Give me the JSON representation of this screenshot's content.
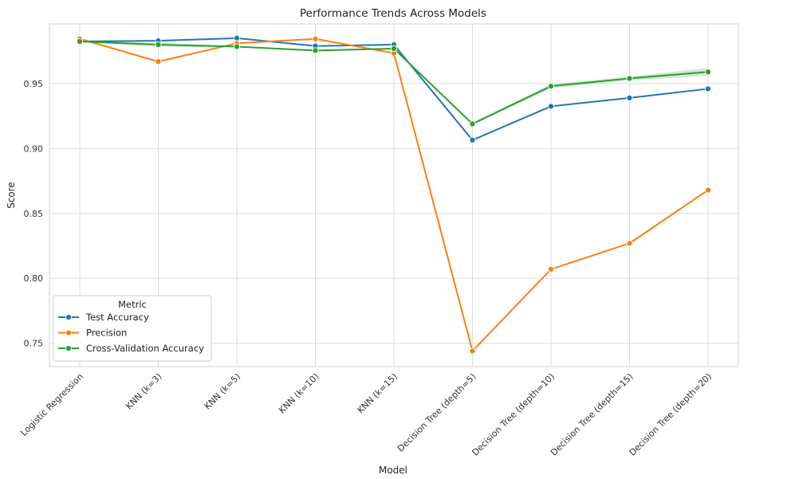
{
  "chart_data": {
    "type": "line",
    "title": "Performance Trends Across Models",
    "xlabel": "Model",
    "ylabel": "Score",
    "categories": [
      "Logistic Regression",
      "KNN (k=3)",
      "KNN (k=5)",
      "KNN (k=10)",
      "KNN (k=15)",
      "Decision Tree (depth=5)",
      "Decision Tree (depth=10)",
      "Decision Tree (depth=15)",
      "Decision Tree (depth=20)"
    ],
    "ylim": [
      0.732,
      0.996
    ],
    "yticks": [
      0.75,
      0.8,
      0.85,
      0.9,
      0.95
    ],
    "ytick_labels": [
      "0.75",
      "0.80",
      "0.85",
      "0.90",
      "0.95"
    ],
    "grid": true,
    "legend": {
      "title": "Metric",
      "placement": "lower-left"
    },
    "series": [
      {
        "name": "Test Accuracy",
        "color": "#1f77b4",
        "values": [
          0.9825,
          0.983,
          0.985,
          0.979,
          0.98,
          0.9065,
          0.9325,
          0.939,
          0.946
        ]
      },
      {
        "name": "Precision",
        "color": "#ff7f0e",
        "values": [
          0.9845,
          0.967,
          0.981,
          0.9845,
          0.9735,
          0.744,
          0.807,
          0.827,
          0.868
        ]
      },
      {
        "name": "Cross-Validation Accuracy",
        "color": "#2ca02c",
        "values": [
          0.9825,
          0.98,
          0.9785,
          0.9755,
          0.977,
          0.919,
          0.948,
          0.954,
          0.959
        ],
        "band_low": [
          0.982,
          0.9785,
          0.978,
          0.975,
          0.9765,
          0.918,
          0.9465,
          0.9525,
          0.956
        ],
        "band_high": [
          0.983,
          0.9815,
          0.979,
          0.976,
          0.9775,
          0.92,
          0.9495,
          0.9555,
          0.962
        ]
      }
    ]
  }
}
